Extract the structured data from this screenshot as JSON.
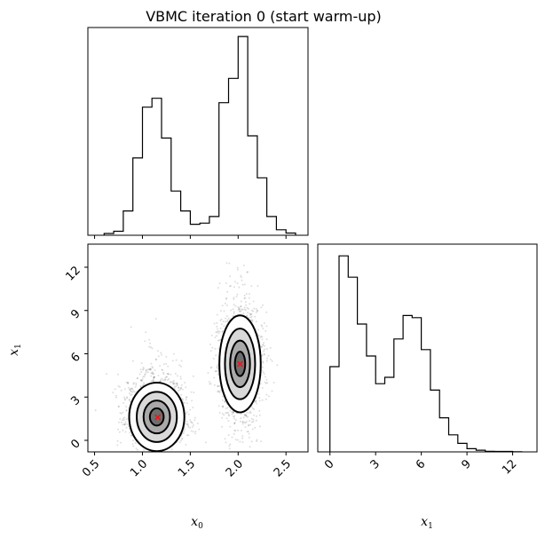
{
  "title": "VBMC iteration 0 (start warm-up)",
  "chart_data": {
    "type": "corner",
    "title": "VBMC iteration 0 (start warm-up)",
    "variables": [
      "x0",
      "x1"
    ],
    "x0_label": {
      "base": "x",
      "sub": "0"
    },
    "x1_label": {
      "base": "x",
      "sub": "1"
    },
    "x0_ticks": [
      "0.5",
      "1.0",
      "1.5",
      "2.0",
      "2.5"
    ],
    "x0_tick_values": [
      0.5,
      1.0,
      1.5,
      2.0,
      2.5
    ],
    "x1_ticks": [
      "0",
      "3",
      "6",
      "9",
      "12"
    ],
    "x1_tick_values": [
      0,
      3,
      6,
      9,
      12
    ],
    "x0_range": [
      0.43,
      2.73
    ],
    "x1_range": [
      -0.8,
      13.6
    ],
    "hist_x0": {
      "bin_edges": [
        0.6,
        0.7,
        0.8,
        0.9,
        1.0,
        1.1,
        1.2,
        1.3,
        1.4,
        1.5,
        1.6,
        1.7,
        1.8,
        1.9,
        2.0,
        2.1,
        2.2,
        2.3,
        2.4,
        2.5,
        2.6
      ],
      "counts": [
        0.8,
        1.8,
        11.0,
        35.0,
        58.0,
        62.0,
        44.0,
        20.0,
        11.0,
        5.0,
        5.5,
        8.5,
        60.0,
        71.0,
        90.0,
        45.0,
        26.0,
        8.5,
        2.5,
        1.0
      ]
    },
    "hist_x1": {
      "bin_edges": [
        0,
        0.6,
        1.2,
        1.8,
        2.4,
        3.0,
        3.6,
        4.2,
        4.8,
        5.4,
        6.0,
        6.6,
        7.2,
        7.8,
        8.4,
        9.0,
        9.6,
        10.2,
        10.8,
        11.4,
        12.0,
        12.6
      ],
      "counts": [
        40,
        92,
        82,
        60,
        45,
        32,
        35,
        53,
        64,
        63,
        48,
        29,
        16,
        8,
        4,
        1.5,
        0.8,
        0.3,
        0.2,
        0.2,
        0.1
      ]
    },
    "clusters": [
      {
        "x0_mean": 1.15,
        "x1_mean": 1.5,
        "x0_sd": 0.12,
        "x1_sd": 1.1
      },
      {
        "x0_mean": 2.02,
        "x1_mean": 5.3,
        "x0_sd": 0.09,
        "x1_sd": 1.4
      }
    ],
    "markers": [
      {
        "x0": 1.16,
        "x1": 1.6,
        "color": "#e41a1c"
      },
      {
        "x0": 2.02,
        "x1": 5.3,
        "color": "#e41a1c"
      }
    ],
    "colors": {
      "line": "#000000",
      "points": "#000000",
      "marker": "#e41a1c"
    }
  }
}
